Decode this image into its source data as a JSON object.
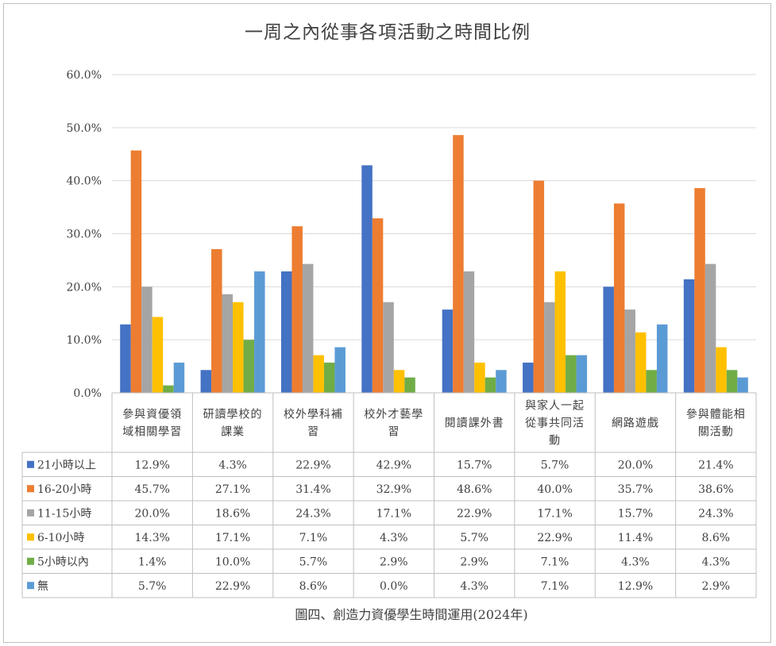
{
  "chart_data": {
    "type": "bar",
    "title": "一周之內從事各項活動之時間比例",
    "caption": "圖四、創造力資優學生時間運用(2024年)",
    "ylim": [
      0,
      60
    ],
    "y_ticks": [
      "0.0%",
      "10.0%",
      "20.0%",
      "30.0%",
      "40.0%",
      "50.0%",
      "60.0%"
    ],
    "y_tick_values": [
      0,
      10,
      20,
      30,
      40,
      50,
      60
    ],
    "grid": true,
    "legend": "data-table-left",
    "categories": [
      [
        "參與資優領",
        "域相關學習"
      ],
      [
        "研讀學校的",
        "課業"
      ],
      [
        "校外學科補",
        "習"
      ],
      [
        "校外才藝學",
        "習"
      ],
      [
        "閱讀課外書"
      ],
      [
        "與家人一起",
        "從事共同活",
        "動"
      ],
      [
        "網路遊戲"
      ],
      [
        "參與體能相",
        "關活動"
      ]
    ],
    "series": [
      {
        "name": "21小時以上",
        "color": "#4472c4",
        "values": [
          12.9,
          4.3,
          22.9,
          42.9,
          15.7,
          5.7,
          20.0,
          21.4
        ],
        "labels": [
          "12.9%",
          "4.3%",
          "22.9%",
          "42.9%",
          "15.7%",
          "5.7%",
          "20.0%",
          "21.4%"
        ]
      },
      {
        "name": "16-20小時",
        "color": "#ed7d31",
        "values": [
          45.7,
          27.1,
          31.4,
          32.9,
          48.6,
          40.0,
          35.7,
          38.6
        ],
        "labels": [
          "45.7%",
          "27.1%",
          "31.4%",
          "32.9%",
          "48.6%",
          "40.0%",
          "35.7%",
          "38.6%"
        ]
      },
      {
        "name": "11-15小時",
        "color": "#a5a5a5",
        "values": [
          20.0,
          18.6,
          24.3,
          17.1,
          22.9,
          17.1,
          15.7,
          24.3
        ],
        "labels": [
          "20.0%",
          "18.6%",
          "24.3%",
          "17.1%",
          "22.9%",
          "17.1%",
          "15.7%",
          "24.3%"
        ]
      },
      {
        "name": "6-10小時",
        "color": "#ffc000",
        "values": [
          14.3,
          17.1,
          7.1,
          4.3,
          5.7,
          22.9,
          11.4,
          8.6
        ],
        "labels": [
          "14.3%",
          "17.1%",
          "7.1%",
          "4.3%",
          "5.7%",
          "22.9%",
          "11.4%",
          "8.6%"
        ]
      },
      {
        "name": "5小時以內",
        "color": "#70ad47",
        "values": [
          1.4,
          10.0,
          5.7,
          2.9,
          2.9,
          7.1,
          4.3,
          4.3
        ],
        "labels": [
          "1.4%",
          "10.0%",
          "5.7%",
          "2.9%",
          "2.9%",
          "7.1%",
          "4.3%",
          "4.3%"
        ]
      },
      {
        "name": "無",
        "color": "#5b9bd5",
        "values": [
          5.7,
          22.9,
          8.6,
          0.0,
          4.3,
          7.1,
          12.9,
          2.9
        ],
        "labels": [
          "5.7%",
          "22.9%",
          "8.6%",
          "0.0%",
          "4.3%",
          "7.1%",
          "12.9%",
          "2.9%"
        ]
      }
    ]
  }
}
